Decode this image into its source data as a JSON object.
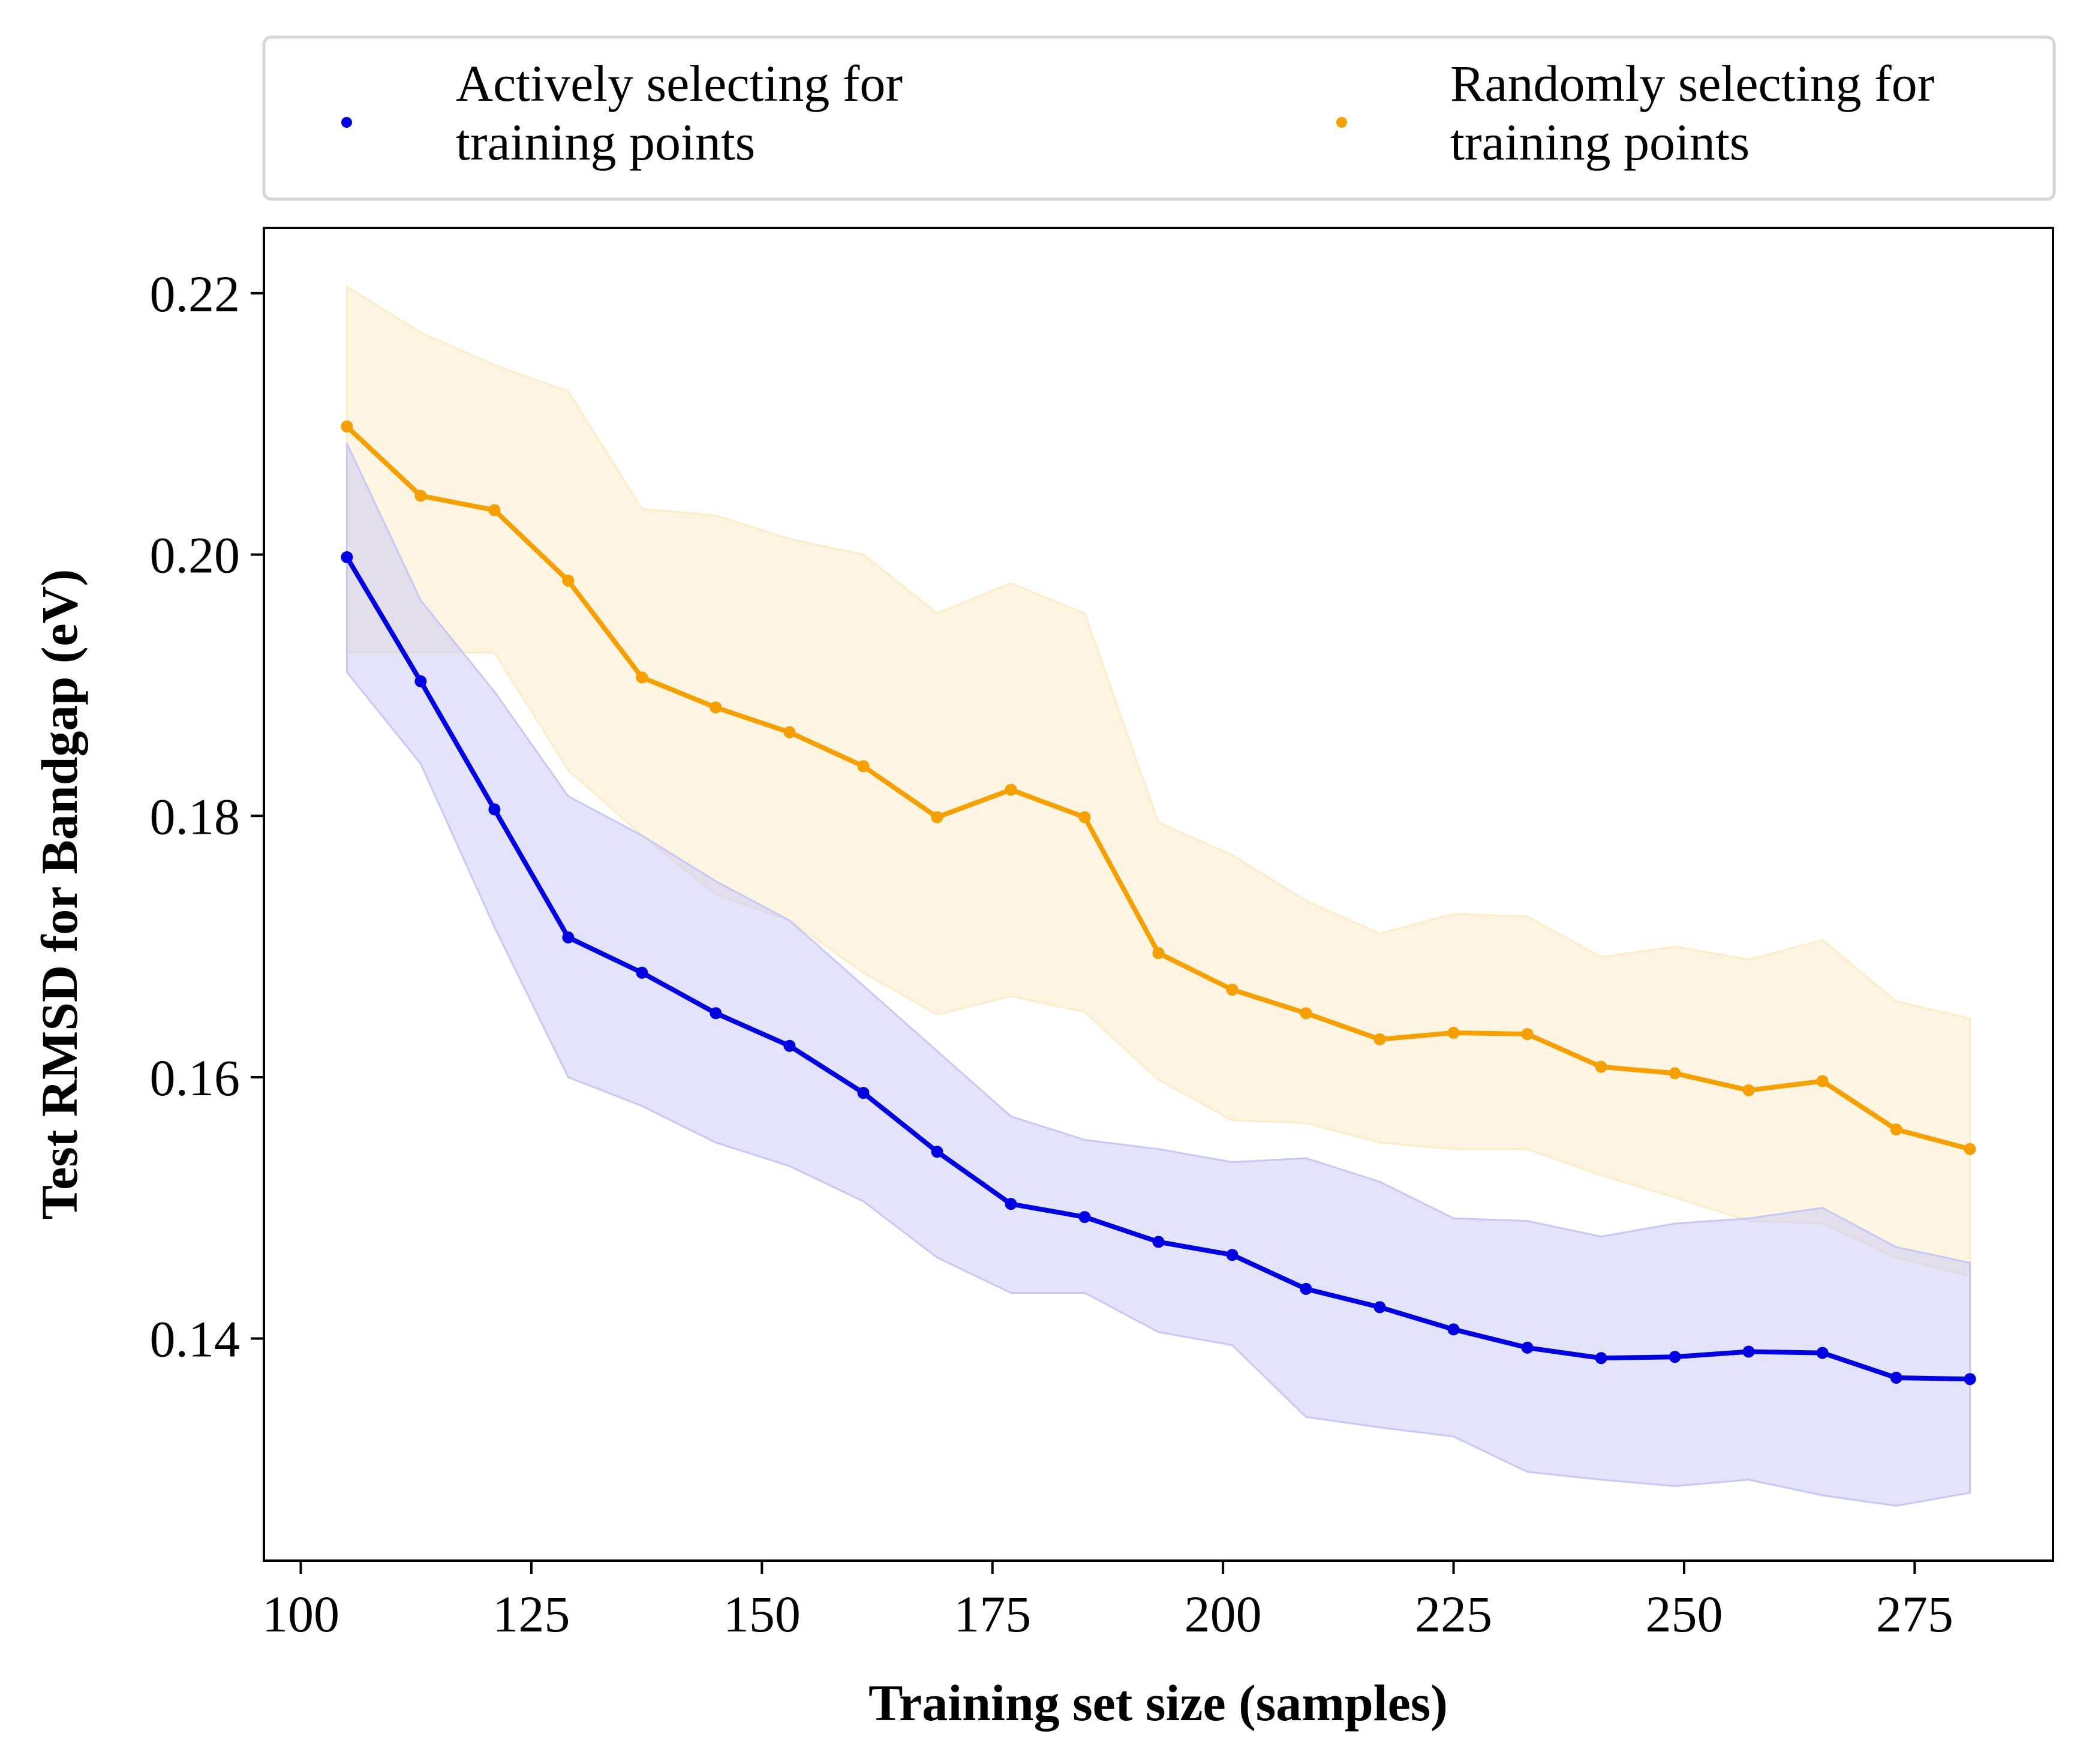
{
  "chart_data": {
    "type": "line",
    "xlabel": "Training set size (samples)",
    "ylabel": "Test RMSD for Bandgap (eV)",
    "xlim": [
      96,
      290
    ],
    "ylim": [
      0.123,
      0.225
    ],
    "x_ticks": [
      100,
      125,
      150,
      175,
      200,
      225,
      250,
      275
    ],
    "x_tick_labels": [
      "100",
      "125",
      "150",
      "175",
      "200",
      "225",
      "250",
      "275"
    ],
    "y_ticks": [
      0.14,
      0.16,
      0.18,
      0.2,
      0.22
    ],
    "y_tick_labels": [
      "0.14",
      "0.16",
      "0.18",
      "0.20",
      "0.22"
    ],
    "grid": false,
    "legend_position": "top, above plot",
    "x": [
      105,
      113,
      121,
      129,
      137,
      145,
      153,
      161,
      169,
      177,
      185,
      193,
      201,
      209,
      217,
      225,
      233,
      241,
      249,
      257,
      265,
      273,
      281
    ],
    "series": [
      {
        "name": "Actively selecting for training points",
        "legend_lines": [
          "Actively selecting for",
          "training points"
        ],
        "color": "#0000e0",
        "band_color": "#c8c8f8",
        "values": [
          0.1998,
          0.1903,
          0.1805,
          0.1707,
          0.168,
          0.1649,
          0.1624,
          0.1588,
          0.1543,
          0.1503,
          0.1493,
          0.1474,
          0.1464,
          0.1438,
          0.1424,
          0.1407,
          0.1393,
          0.1385,
          0.1386,
          0.139,
          0.1389,
          0.137,
          0.1369
        ],
        "upper": [
          0.2085,
          0.1965,
          0.1895,
          0.1815,
          0.1785,
          0.175,
          0.172,
          0.167,
          0.162,
          0.157,
          0.1552,
          0.1545,
          0.1535,
          0.1538,
          0.152,
          0.1492,
          0.149,
          0.1478,
          0.1488,
          0.1492,
          0.15,
          0.147,
          0.1458
        ],
        "lower": [
          0.191,
          0.184,
          0.1715,
          0.16,
          0.1578,
          0.155,
          0.1532,
          0.1505,
          0.1462,
          0.1435,
          0.1435,
          0.1405,
          0.1395,
          0.134,
          0.1332,
          0.1325,
          0.1298,
          0.1292,
          0.1287,
          0.1292,
          0.128,
          0.1272,
          0.1282
        ]
      },
      {
        "name": "Randomly selecting for training points",
        "legend_lines": [
          "Randomly selecting for",
          "training points"
        ],
        "color": "#f5a000",
        "band_color": "#fcecc8",
        "values": [
          0.2098,
          0.2045,
          0.2034,
          0.198,
          0.1906,
          0.1883,
          0.1864,
          0.1838,
          0.1799,
          0.182,
          0.1799,
          0.1695,
          0.1667,
          0.1649,
          0.1629,
          0.1634,
          0.1633,
          0.1608,
          0.1603,
          0.159,
          0.1597,
          0.156,
          0.1545
        ],
        "upper": [
          0.2205,
          0.217,
          0.2145,
          0.2125,
          0.2035,
          0.203,
          0.2012,
          0.2,
          0.1955,
          0.1978,
          0.1955,
          0.1795,
          0.177,
          0.1735,
          0.171,
          0.1725,
          0.1723,
          0.1692,
          0.17,
          0.169,
          0.1705,
          0.1658,
          0.1645
        ],
        "lower": [
          0.1925,
          0.1925,
          0.1925,
          0.1835,
          0.1785,
          0.174,
          0.172,
          0.168,
          0.1648,
          0.1662,
          0.165,
          0.1598,
          0.1567,
          0.1565,
          0.155,
          0.1545,
          0.1545,
          0.1525,
          0.1508,
          0.149,
          0.1488,
          0.1462,
          0.1448
        ]
      }
    ]
  }
}
